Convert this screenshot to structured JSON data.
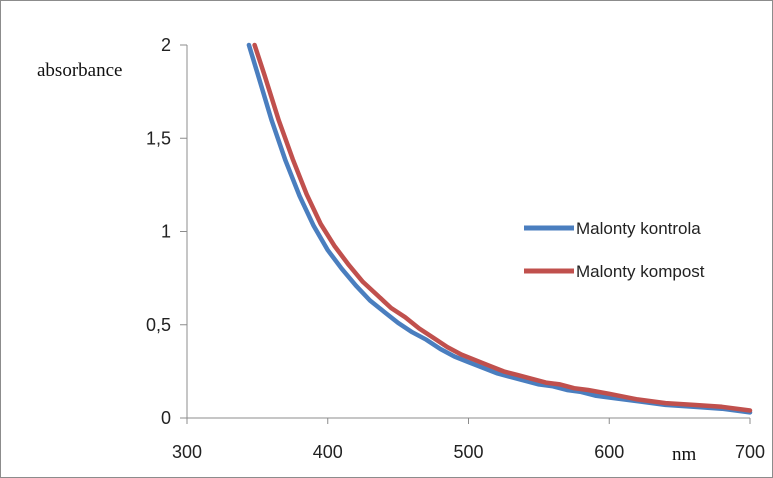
{
  "chart_data": {
    "type": "line",
    "title": "",
    "xlabel": "nm",
    "ylabel": "absorbance",
    "xlim": [
      300,
      700
    ],
    "ylim": [
      0,
      2
    ],
    "x_ticks": [
      "300",
      "400",
      "500",
      "600",
      "700"
    ],
    "y_ticks": [
      "0",
      "0,5",
      "1",
      "1,5",
      "2"
    ],
    "grid": false,
    "legend_position": "right",
    "series": [
      {
        "name": "Malonty kontrola",
        "color": "#4a7ebf",
        "points": [
          [
            344,
            2.0
          ],
          [
            350,
            1.85
          ],
          [
            360,
            1.6
          ],
          [
            370,
            1.38
          ],
          [
            380,
            1.19
          ],
          [
            390,
            1.03
          ],
          [
            400,
            0.9
          ],
          [
            410,
            0.8
          ],
          [
            420,
            0.71
          ],
          [
            430,
            0.63
          ],
          [
            440,
            0.57
          ],
          [
            450,
            0.51
          ],
          [
            460,
            0.46
          ],
          [
            470,
            0.42
          ],
          [
            480,
            0.37
          ],
          [
            490,
            0.33
          ],
          [
            500,
            0.3
          ],
          [
            510,
            0.27
          ],
          [
            520,
            0.24
          ],
          [
            530,
            0.22
          ],
          [
            540,
            0.2
          ],
          [
            550,
            0.18
          ],
          [
            560,
            0.17
          ],
          [
            570,
            0.15
          ],
          [
            580,
            0.14
          ],
          [
            590,
            0.12
          ],
          [
            600,
            0.11
          ],
          [
            620,
            0.09
          ],
          [
            640,
            0.07
          ],
          [
            660,
            0.06
          ],
          [
            680,
            0.05
          ],
          [
            700,
            0.03
          ]
        ]
      },
      {
        "name": "Malonty kompost",
        "color": "#c0504d",
        "points": [
          [
            348,
            2.0
          ],
          [
            355,
            1.84
          ],
          [
            365,
            1.6
          ],
          [
            375,
            1.39
          ],
          [
            385,
            1.2
          ],
          [
            395,
            1.04
          ],
          [
            405,
            0.92
          ],
          [
            415,
            0.82
          ],
          [
            425,
            0.73
          ],
          [
            435,
            0.66
          ],
          [
            445,
            0.59
          ],
          [
            455,
            0.54
          ],
          [
            465,
            0.48
          ],
          [
            475,
            0.43
          ],
          [
            485,
            0.38
          ],
          [
            495,
            0.34
          ],
          [
            505,
            0.31
          ],
          [
            515,
            0.28
          ],
          [
            525,
            0.25
          ],
          [
            535,
            0.23
          ],
          [
            545,
            0.21
          ],
          [
            555,
            0.19
          ],
          [
            565,
            0.18
          ],
          [
            575,
            0.16
          ],
          [
            585,
            0.15
          ],
          [
            600,
            0.13
          ],
          [
            620,
            0.1
          ],
          [
            640,
            0.08
          ],
          [
            660,
            0.07
          ],
          [
            680,
            0.06
          ],
          [
            700,
            0.04
          ]
        ]
      }
    ]
  }
}
